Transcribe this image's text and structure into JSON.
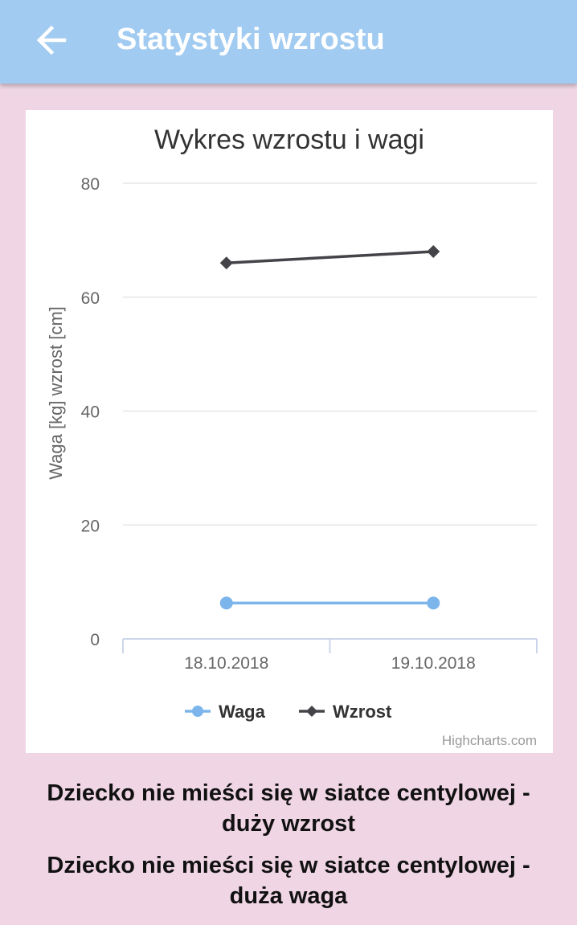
{
  "appbar": {
    "title": "Statystyki wzrostu",
    "back_icon": "arrow-left-icon"
  },
  "colors": {
    "appbar": "#a2cbf1",
    "background": "#f0d6e5",
    "waga": "#7cb5ec",
    "wzrost": "#434348"
  },
  "chart_data": {
    "type": "line",
    "title": "Wykres wzrostu i wagi",
    "ylabel": "Waga [kg] wzrost [cm]",
    "xlabel": "",
    "categories": [
      "18.10.2018",
      "19.10.2018"
    ],
    "ylim": [
      0,
      80
    ],
    "yticks": [
      "0",
      "20",
      "40",
      "60",
      "80"
    ],
    "grid": true,
    "legend_position": "bottom",
    "series": [
      {
        "name": "Waga",
        "values": [
          6.3,
          6.3
        ],
        "marker": "circle",
        "color": "#7cb5ec"
      },
      {
        "name": "Wzrost",
        "values": [
          66,
          68
        ],
        "marker": "diamond",
        "color": "#434348"
      }
    ],
    "credits": "Highcharts.com"
  },
  "messages": [
    "Dziecko nie mieści się w siatce centylowej - duży wzrost",
    "Dziecko nie mieści się w siatce centylowej - duża waga"
  ]
}
